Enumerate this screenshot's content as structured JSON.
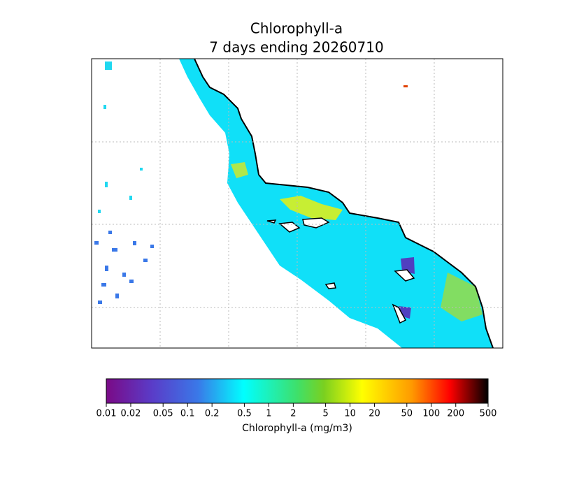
{
  "map": {
    "title": "Chlorophyll-a",
    "subtitle": "7 days ending 20260710",
    "colorbar": {
      "label": "Chlorophyll-a (mg/m3)",
      "scale": "log",
      "lim": [
        0.01,
        500
      ],
      "ticks": [
        0.01,
        0.02,
        0.05,
        0.1,
        0.2,
        0.5,
        1,
        2,
        5,
        10,
        20,
        50,
        100,
        200,
        500
      ]
    }
  }
}
